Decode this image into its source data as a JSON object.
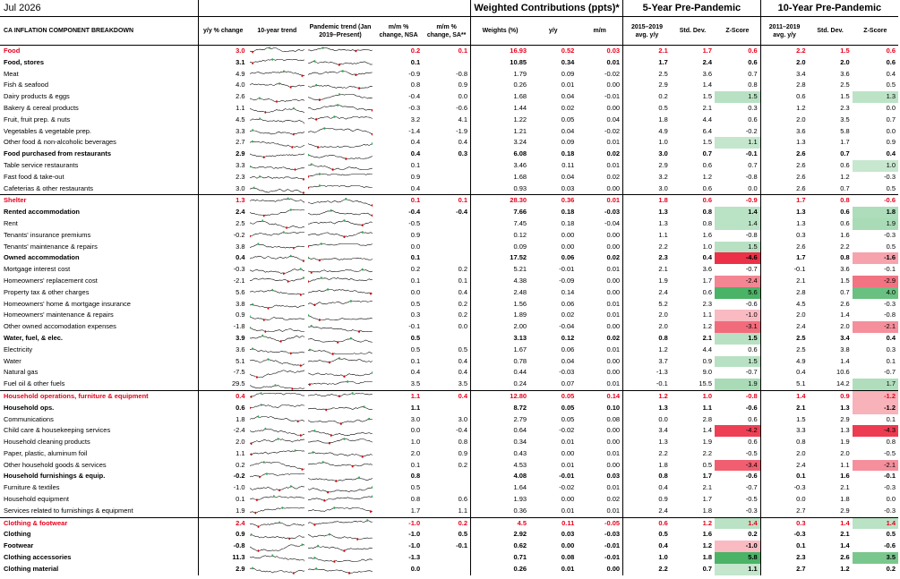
{
  "date": "Jul 2026",
  "headers": {
    "name": "CA INFLATION COMPONENT BREAKDOWN",
    "yy": "y/y % change",
    "trend10": "10-year trend",
    "pandemic": "Pandemic trend (Jan 2019–Present)",
    "mm_nsa": "m/m % change, NSA",
    "mm_sa": "m/m % change, SA**",
    "group_weighted": "Weighted Contributions (ppts)*",
    "weights": "Weights (%)",
    "wyy": "y/y",
    "wmm": "m/m",
    "group_5y": "5-Year Pre-Pandemic",
    "avg5": "2015–2019 avg. y/y",
    "sd5": "Std. Dev.",
    "z5": "Z-Score",
    "group_10y": "10-Year Pre-Pandemic",
    "avg10": "2011–2019 avg. y/y",
    "sd10": "Std. Dev.",
    "z10": "Z-Score"
  },
  "colors": {
    "category": "#e8001c",
    "z_positive": "#2fa84f",
    "z_negative": "#e8001c",
    "spark_low": "#d40000",
    "spark_high": "#2fa84f"
  },
  "rows": [
    {
      "type": "cat",
      "name": "Food",
      "yy": "3.0",
      "mm": "0.2",
      "sa": "0.1",
      "w": "16.93",
      "wy": "0.52",
      "wm": "0.03",
      "a5": "2.1",
      "s5": "1.7",
      "z5": "0.6",
      "a10": "2.2",
      "s10": "1.5",
      "z10": "0.6"
    },
    {
      "type": "sub",
      "name": "Food, stores",
      "yy": "3.1",
      "mm": "0.1",
      "sa": "",
      "w": "10.85",
      "wy": "0.34",
      "wm": "0.01",
      "a5": "1.7",
      "s5": "2.4",
      "z5": "0.6",
      "a10": "2.0",
      "s10": "2.0",
      "z10": "0.6"
    },
    {
      "type": "item",
      "name": "Meat",
      "yy": "4.9",
      "mm": "-0.9",
      "sa": "-0.8",
      "w": "1.79",
      "wy": "0.09",
      "wm": "-0.02",
      "a5": "2.5",
      "s5": "3.6",
      "z5": "0.7",
      "a10": "3.4",
      "s10": "3.6",
      "z10": "0.4"
    },
    {
      "type": "item",
      "name": "Fish & seafood",
      "yy": "4.0",
      "mm": "0.8",
      "sa": "0.9",
      "w": "0.26",
      "wy": "0.01",
      "wm": "0.00",
      "a5": "2.9",
      "s5": "1.4",
      "z5": "0.8",
      "a10": "2.8",
      "s10": "2.5",
      "z10": "0.5"
    },
    {
      "type": "item",
      "name": "Dairy products & eggs",
      "yy": "2.6",
      "mm": "-0.4",
      "sa": "0.0",
      "w": "1.68",
      "wy": "0.04",
      "wm": "-0.01",
      "a5": "0.2",
      "s5": "1.5",
      "z5": "1.5",
      "a10": "0.6",
      "s10": "1.5",
      "z10": "1.3"
    },
    {
      "type": "item",
      "name": "Bakery & cereal products",
      "yy": "1.1",
      "mm": "-0.3",
      "sa": "-0.6",
      "w": "1.44",
      "wy": "0.02",
      "wm": "0.00",
      "a5": "0.5",
      "s5": "2.1",
      "z5": "0.3",
      "a10": "1.2",
      "s10": "2.3",
      "z10": "0.0"
    },
    {
      "type": "item",
      "name": "Fruit, fruit prep. & nuts",
      "yy": "4.5",
      "mm": "3.2",
      "sa": "4.1",
      "w": "1.22",
      "wy": "0.05",
      "wm": "0.04",
      "a5": "1.8",
      "s5": "4.4",
      "z5": "0.6",
      "a10": "2.0",
      "s10": "3.5",
      "z10": "0.7"
    },
    {
      "type": "item",
      "name": "Vegetables & vegetable prep.",
      "yy": "3.3",
      "mm": "-1.4",
      "sa": "-1.9",
      "w": "1.21",
      "wy": "0.04",
      "wm": "-0.02",
      "a5": "4.9",
      "s5": "6.4",
      "z5": "-0.2",
      "a10": "3.6",
      "s10": "5.8",
      "z10": "0.0"
    },
    {
      "type": "item",
      "name": "Other food & non-alcoholic beverages",
      "yy": "2.7",
      "mm": "0.4",
      "sa": "0.4",
      "w": "3.24",
      "wy": "0.09",
      "wm": "0.01",
      "a5": "1.0",
      "s5": "1.5",
      "z5": "1.1",
      "a10": "1.3",
      "s10": "1.7",
      "z10": "0.9"
    },
    {
      "type": "sub",
      "name": "Food purchased from restaurants",
      "yy": "2.9",
      "mm": "0.4",
      "sa": "0.3",
      "w": "6.08",
      "wy": "0.18",
      "wm": "0.02",
      "a5": "3.0",
      "s5": "0.7",
      "z5": "-0.1",
      "a10": "2.6",
      "s10": "0.7",
      "z10": "0.4"
    },
    {
      "type": "item",
      "name": "Table service restaurants",
      "yy": "3.3",
      "mm": "0.1",
      "sa": "",
      "w": "3.46",
      "wy": "0.11",
      "wm": "0.01",
      "a5": "2.9",
      "s5": "0.6",
      "z5": "0.7",
      "a10": "2.6",
      "s10": "0.6",
      "z10": "1.0"
    },
    {
      "type": "item",
      "name": "Fast food & take-out",
      "yy": "2.3",
      "mm": "0.9",
      "sa": "",
      "w": "1.68",
      "wy": "0.04",
      "wm": "0.02",
      "a5": "3.2",
      "s5": "1.2",
      "z5": "-0.8",
      "a10": "2.6",
      "s10": "1.2",
      "z10": "-0.3"
    },
    {
      "type": "item",
      "name": "Cafeterias & other restaurants",
      "yy": "3.0",
      "mm": "0.4",
      "sa": "",
      "w": "0.93",
      "wy": "0.03",
      "wm": "0.00",
      "a5": "3.0",
      "s5": "0.6",
      "z5": "0.0",
      "a10": "2.6",
      "s10": "0.7",
      "z10": "0.5"
    },
    {
      "type": "cat",
      "name": "Shelter",
      "yy": "1.3",
      "mm": "0.1",
      "sa": "0.1",
      "w": "28.30",
      "wy": "0.36",
      "wm": "0.01",
      "a5": "1.8",
      "s5": "0.6",
      "z5": "-0.9",
      "a10": "1.7",
      "s10": "0.8",
      "z10": "-0.6"
    },
    {
      "type": "sub",
      "name": "Rented accommodation",
      "yy": "2.4",
      "mm": "-0.4",
      "sa": "-0.4",
      "w": "7.66",
      "wy": "0.18",
      "wm": "-0.03",
      "a5": "1.3",
      "s5": "0.8",
      "z5": "1.4",
      "a10": "1.3",
      "s10": "0.6",
      "z10": "1.8"
    },
    {
      "type": "item",
      "name": "Rent",
      "yy": "2.5",
      "mm": "-0.5",
      "sa": "",
      "w": "7.45",
      "wy": "0.18",
      "wm": "-0.04",
      "a5": "1.3",
      "s5": "0.8",
      "z5": "1.4",
      "a10": "1.3",
      "s10": "0.6",
      "z10": "1.9"
    },
    {
      "type": "item",
      "name": "Tenants' insurance premiums",
      "yy": "-0.2",
      "mm": "0.9",
      "sa": "",
      "w": "0.12",
      "wy": "0.00",
      "wm": "0.00",
      "a5": "1.1",
      "s5": "1.6",
      "z5": "-0.8",
      "a10": "0.3",
      "s10": "1.6",
      "z10": "-0.3"
    },
    {
      "type": "item",
      "name": "Tenants' maintenance & repairs",
      "yy": "3.8",
      "mm": "0.0",
      "sa": "",
      "w": "0.09",
      "wy": "0.00",
      "wm": "0.00",
      "a5": "2.2",
      "s5": "1.0",
      "z5": "1.5",
      "a10": "2.6",
      "s10": "2.2",
      "z10": "0.5"
    },
    {
      "type": "sub",
      "name": "Owned accommodation",
      "yy": "0.4",
      "mm": "0.1",
      "sa": "",
      "w": "17.52",
      "wy": "0.06",
      "wm": "0.02",
      "a5": "2.3",
      "s5": "0.4",
      "z5": "-4.6",
      "a10": "1.7",
      "s10": "0.8",
      "z10": "-1.6"
    },
    {
      "type": "item",
      "name": "Mortgage interest cost",
      "yy": "-0.3",
      "mm": "0.2",
      "sa": "0.2",
      "w": "5.21",
      "wy": "-0.01",
      "wm": "0.01",
      "a5": "2.1",
      "s5": "3.6",
      "z5": "-0.7",
      "a10": "-0.1",
      "s10": "3.6",
      "z10": "-0.1"
    },
    {
      "type": "item",
      "name": "Homeowners' replacement cost",
      "yy": "-2.1",
      "mm": "0.1",
      "sa": "0.1",
      "w": "4.38",
      "wy": "-0.09",
      "wm": "0.00",
      "a5": "1.9",
      "s5": "1.7",
      "z5": "-2.4",
      "a10": "2.1",
      "s10": "1.5",
      "z10": "-2.9"
    },
    {
      "type": "item",
      "name": "Property tax & other charges",
      "yy": "5.6",
      "mm": "0.0",
      "sa": "0.4",
      "w": "2.48",
      "wy": "0.14",
      "wm": "0.00",
      "a5": "2.4",
      "s5": "0.6",
      "z5": "5.6",
      "a10": "2.8",
      "s10": "0.7",
      "z10": "4.0"
    },
    {
      "type": "item",
      "name": "Homeowners' home & mortgage insurance",
      "yy": "3.8",
      "mm": "0.5",
      "sa": "0.2",
      "w": "1.56",
      "wy": "0.06",
      "wm": "0.01",
      "a5": "5.2",
      "s5": "2.3",
      "z5": "-0.6",
      "a10": "4.5",
      "s10": "2.6",
      "z10": "-0.3"
    },
    {
      "type": "item",
      "name": "Homeowners' maintenance & repairs",
      "yy": "0.9",
      "mm": "0.3",
      "sa": "0.2",
      "w": "1.89",
      "wy": "0.02",
      "wm": "0.01",
      "a5": "2.0",
      "s5": "1.1",
      "z5": "-1.0",
      "a10": "2.0",
      "s10": "1.4",
      "z10": "-0.8"
    },
    {
      "type": "item",
      "name": "Other owned accomodation expenses",
      "yy": "-1.8",
      "mm": "-0.1",
      "sa": "0.0",
      "w": "2.00",
      "wy": "-0.04",
      "wm": "0.00",
      "a5": "2.0",
      "s5": "1.2",
      "z5": "-3.1",
      "a10": "2.4",
      "s10": "2.0",
      "z10": "-2.1"
    },
    {
      "type": "sub",
      "name": "Water, fuel, & elec.",
      "yy": "3.9",
      "mm": "0.5",
      "sa": "",
      "w": "3.13",
      "wy": "0.12",
      "wm": "0.02",
      "a5": "0.8",
      "s5": "2.1",
      "z5": "1.5",
      "a10": "2.5",
      "s10": "3.4",
      "z10": "0.4"
    },
    {
      "type": "item",
      "name": "Electricity",
      "yy": "3.6",
      "mm": "0.5",
      "sa": "0.5",
      "w": "1.67",
      "wy": "0.06",
      "wm": "0.01",
      "a5": "1.2",
      "s5": "4.4",
      "z5": "0.6",
      "a10": "2.5",
      "s10": "3.8",
      "z10": "0.3"
    },
    {
      "type": "item",
      "name": "Water",
      "yy": "5.1",
      "mm": "0.1",
      "sa": "0.4",
      "w": "0.78",
      "wy": "0.04",
      "wm": "0.00",
      "a5": "3.7",
      "s5": "0.9",
      "z5": "1.5",
      "a10": "4.9",
      "s10": "1.4",
      "z10": "0.1"
    },
    {
      "type": "item",
      "name": "Natural gas",
      "yy": "-7.5",
      "mm": "0.4",
      "sa": "0.4",
      "w": "0.44",
      "wy": "-0.03",
      "wm": "0.00",
      "a5": "-1.3",
      "s5": "9.0",
      "z5": "-0.7",
      "a10": "0.4",
      "s10": "10.6",
      "z10": "-0.7"
    },
    {
      "type": "item",
      "name": "Fuel oil & other fuels",
      "yy": "29.5",
      "mm": "3.5",
      "sa": "3.5",
      "w": "0.24",
      "wy": "0.07",
      "wm": "0.01",
      "a5": "-0.1",
      "s5": "15.5",
      "z5": "1.9",
      "a10": "5.1",
      "s10": "14.2",
      "z10": "1.7"
    },
    {
      "type": "cat",
      "name": "Household operations, furniture & equipment",
      "yy": "0.4",
      "mm": "1.1",
      "sa": "0.4",
      "w": "12.80",
      "wy": "0.05",
      "wm": "0.14",
      "a5": "1.2",
      "s5": "1.0",
      "z5": "-0.8",
      "a10": "1.4",
      "s10": "0.9",
      "z10": "-1.2"
    },
    {
      "type": "sub",
      "name": "Household ops.",
      "yy": "0.6",
      "mm": "1.1",
      "sa": "",
      "w": "8.72",
      "wy": "0.05",
      "wm": "0.10",
      "a5": "1.3",
      "s5": "1.1",
      "z5": "-0.6",
      "a10": "2.1",
      "s10": "1.3",
      "z10": "-1.2"
    },
    {
      "type": "item",
      "name": "Communications",
      "yy": "1.8",
      "mm": "3.0",
      "sa": "3.0",
      "w": "2.79",
      "wy": "0.05",
      "wm": "0.08",
      "a5": "0.0",
      "s5": "2.8",
      "z5": "0.6",
      "a10": "1.5",
      "s10": "2.9",
      "z10": "0.1"
    },
    {
      "type": "item",
      "name": "Child care & housekeeping services",
      "yy": "-2.4",
      "mm": "0.0",
      "sa": "-0.4",
      "w": "0.64",
      "wy": "-0.02",
      "wm": "0.00",
      "a5": "3.4",
      "s5": "1.4",
      "z5": "-4.2",
      "a10": "3.3",
      "s10": "1.3",
      "z10": "-4.3"
    },
    {
      "type": "item",
      "name": "Household cleaning products",
      "yy": "2.0",
      "mm": "1.0",
      "sa": "0.8",
      "w": "0.34",
      "wy": "0.01",
      "wm": "0.00",
      "a5": "1.3",
      "s5": "1.9",
      "z5": "0.6",
      "a10": "0.8",
      "s10": "1.9",
      "z10": "0.8"
    },
    {
      "type": "item",
      "name": "Paper, plastic, aluminum foil",
      "yy": "1.1",
      "mm": "2.0",
      "sa": "0.9",
      "w": "0.43",
      "wy": "0.00",
      "wm": "0.01",
      "a5": "2.2",
      "s5": "2.2",
      "z5": "-0.5",
      "a10": "2.0",
      "s10": "2.0",
      "z10": "-0.5"
    },
    {
      "type": "item",
      "name": "Other household goods & services",
      "yy": "0.2",
      "mm": "0.1",
      "sa": "0.2",
      "w": "4.53",
      "wy": "0.01",
      "wm": "0.00",
      "a5": "1.8",
      "s5": "0.5",
      "z5": "-3.4",
      "a10": "2.4",
      "s10": "1.1",
      "z10": "-2.1"
    },
    {
      "type": "sub",
      "name": "Household furnishings & equip.",
      "yy": "-0.2",
      "mm": "0.8",
      "sa": "",
      "w": "4.08",
      "wy": "-0.01",
      "wm": "0.03",
      "a5": "0.8",
      "s5": "1.7",
      "z5": "-0.6",
      "a10": "0.1",
      "s10": "1.6",
      "z10": "-0.1"
    },
    {
      "type": "item",
      "name": "Furniture & textiles",
      "yy": "-1.0",
      "mm": "0.5",
      "sa": "",
      "w": "1.64",
      "wy": "-0.02",
      "wm": "0.01",
      "a5": "0.4",
      "s5": "2.1",
      "z5": "-0.7",
      "a10": "-0.3",
      "s10": "2.1",
      "z10": "-0.3"
    },
    {
      "type": "item",
      "name": "Household equipment",
      "yy": "0.1",
      "mm": "0.8",
      "sa": "0.6",
      "w": "1.93",
      "wy": "0.00",
      "wm": "0.02",
      "a5": "0.9",
      "s5": "1.7",
      "z5": "-0.5",
      "a10": "0.0",
      "s10": "1.8",
      "z10": "0.0"
    },
    {
      "type": "item",
      "name": "Services related to furnishings & equipment",
      "yy": "1.9",
      "mm": "1.7",
      "sa": "1.1",
      "w": "0.36",
      "wy": "0.01",
      "wm": "0.01",
      "a5": "2.4",
      "s5": "1.8",
      "z5": "-0.3",
      "a10": "2.7",
      "s10": "2.9",
      "z10": "-0.3"
    },
    {
      "type": "cat",
      "name": "Clothing & footwear",
      "yy": "2.4",
      "mm": "-1.0",
      "sa": "0.2",
      "w": "4.5",
      "wy": "0.11",
      "wm": "-0.05",
      "a5": "0.6",
      "s5": "1.2",
      "z5": "1.4",
      "a10": "0.3",
      "s10": "1.4",
      "z10": "1.4"
    },
    {
      "type": "sub",
      "name": "Clothing",
      "yy": "0.9",
      "mm": "-1.0",
      "sa": "0.5",
      "w": "2.92",
      "wy": "0.03",
      "wm": "-0.03",
      "a5": "0.5",
      "s5": "1.6",
      "z5": "0.2",
      "a10": "-0.3",
      "s10": "2.1",
      "z10": "0.5"
    },
    {
      "type": "sub",
      "name": "Footwear",
      "yy": "-0.8",
      "mm": "-1.0",
      "sa": "-0.1",
      "w": "0.62",
      "wy": "0.00",
      "wm": "-0.01",
      "a5": "0.4",
      "s5": "1.2",
      "z5": "-1.0",
      "a10": "0.1",
      "s10": "1.4",
      "z10": "-0.6"
    },
    {
      "type": "sub",
      "name": "Clothing accessories",
      "yy": "11.3",
      "mm": "-1.3",
      "sa": "",
      "w": "0.71",
      "wy": "0.08",
      "wm": "-0.01",
      "a5": "1.0",
      "s5": "1.8",
      "z5": "5.8",
      "a10": "2.3",
      "s10": "2.6",
      "z10": "3.5"
    },
    {
      "type": "sub",
      "name": "Clothing material",
      "yy": "2.9",
      "mm": "0.0",
      "sa": "",
      "w": "0.26",
      "wy": "0.01",
      "wm": "0.00",
      "a5": "2.2",
      "s5": "0.7",
      "z5": "1.1",
      "a10": "2.7",
      "s10": "1.2",
      "z10": "0.2"
    }
  ]
}
